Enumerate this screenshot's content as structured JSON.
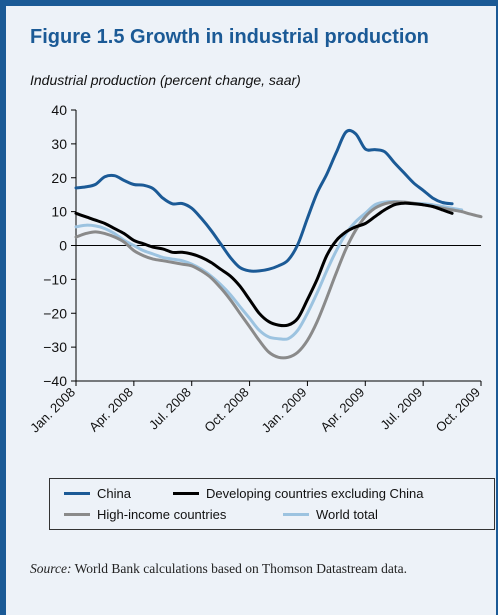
{
  "figure": {
    "title": "Figure 1.5  Growth in industrial production",
    "source_label": "Source:",
    "source_text": "World Bank calculations based on Thomson Datastream data."
  },
  "colors": {
    "title": "#1b5a96",
    "panel_bg": "#edf2f8",
    "border": "#1b5a96"
  },
  "chart_data": {
    "type": "line",
    "ylabel": "Industrial production (percent change, saar)",
    "ylim": [
      -40,
      40
    ],
    "yticks": [
      -40,
      -30,
      -20,
      -10,
      0,
      10,
      20,
      30,
      40
    ],
    "ytick_labels": [
      "−40",
      "−30",
      "−20",
      "−10",
      "0",
      "10",
      "20",
      "30",
      "40"
    ],
    "x_tick_labels": [
      "Jan. 2008",
      "Apr. 2008",
      "Jul. 2008",
      "Oct. 2008",
      "Jan. 2009",
      "Apr. 2009",
      "Jul. 2009",
      "Oct. 2009"
    ],
    "x_months_per_tick": 3,
    "x_range_months": [
      0,
      21
    ],
    "legend_position": "bottom",
    "series": [
      {
        "name": "China",
        "color": "#1b5a96",
        "x": [
          0,
          0.5,
          1,
          1.5,
          2,
          2.5,
          3,
          3.5,
          4,
          4.5,
          5,
          5.5,
          6,
          6.5,
          7,
          7.5,
          8,
          8.5,
          9,
          9.5,
          10,
          10.5,
          11,
          11.5,
          12,
          12.5,
          13,
          13.5,
          14,
          14.5,
          15,
          15.5,
          16,
          16.5,
          17,
          17.5,
          18,
          18.5,
          19,
          19.5
        ],
        "values": [
          17,
          17.3,
          18,
          20.3,
          20.6,
          19.2,
          18,
          17.8,
          16.8,
          14,
          12.3,
          12.4,
          11,
          8,
          4.5,
          0.5,
          -3.5,
          -6.5,
          -7.5,
          -7.5,
          -7,
          -6,
          -4.3,
          0.3,
          8,
          15.5,
          21,
          27.5,
          33.5,
          33,
          28.5,
          28.3,
          27.7,
          24.5,
          21.5,
          18.5,
          16.3,
          14,
          12.7,
          12.3
        ]
      },
      {
        "name": "Developing countries excluding China",
        "color": "#000000",
        "x": [
          0,
          0.5,
          1,
          1.5,
          2,
          2.5,
          3,
          3.5,
          4,
          4.5,
          5,
          5.5,
          6,
          6.5,
          7,
          7.5,
          8,
          8.5,
          9,
          9.5,
          10,
          10.5,
          11,
          11.5,
          12,
          12.5,
          13,
          13.5,
          14,
          14.5,
          15,
          15.5,
          16,
          16.5,
          17,
          17.5,
          18,
          18.5,
          19,
          19.5
        ],
        "values": [
          9.5,
          8.5,
          7.5,
          6.5,
          5,
          3.5,
          1.5,
          0.5,
          -0.5,
          -1,
          -2,
          -2,
          -2.5,
          -3.5,
          -5,
          -7,
          -9,
          -12,
          -16,
          -20,
          -22.5,
          -23.5,
          -23.5,
          -21.5,
          -16,
          -10,
          -3,
          1.5,
          4,
          5.5,
          6.5,
          8.5,
          10.5,
          12,
          12.5,
          12.3,
          12,
          11.5,
          10.5,
          9.5
        ]
      },
      {
        "name": "High-income countries",
        "color": "#8a8a8a",
        "x": [
          0,
          0.5,
          1,
          1.5,
          2,
          2.5,
          3,
          3.5,
          4,
          4.5,
          5,
          5.5,
          6,
          6.5,
          7,
          7.5,
          8,
          8.5,
          9,
          9.5,
          10,
          10.5,
          11,
          11.5,
          12,
          12.5,
          13,
          13.5,
          14,
          14.5,
          15,
          15.5,
          16,
          16.5,
          17,
          17.5,
          18,
          18.5,
          19,
          19.5,
          20,
          20.5,
          21
        ],
        "values": [
          2.5,
          3.5,
          4,
          3.5,
          2.5,
          1,
          -1.5,
          -3,
          -4,
          -4.5,
          -5,
          -5.5,
          -6,
          -7.5,
          -9.5,
          -12.5,
          -16,
          -20,
          -24,
          -28,
          -31.5,
          -33,
          -33,
          -31.5,
          -28,
          -22.5,
          -15.5,
          -8,
          -1,
          4.5,
          8.5,
          11,
          12.3,
          12.8,
          12.8,
          12.5,
          12,
          11.5,
          11,
          10.5,
          10,
          9.2,
          8.5
        ]
      },
      {
        "name": "World total",
        "color": "#9cc3e0",
        "x": [
          0,
          0.5,
          1,
          1.5,
          2,
          2.5,
          3,
          3.5,
          4,
          4.5,
          5,
          5.5,
          6,
          6.5,
          7,
          7.5,
          8,
          8.5,
          9,
          9.5,
          10,
          10.5,
          11,
          11.5,
          12,
          12.5,
          13,
          13.5,
          14,
          14.5,
          15,
          15.5,
          16,
          16.5,
          17,
          17.5,
          18,
          18.5,
          19,
          19.5,
          20
        ],
        "values": [
          5.5,
          6,
          5.8,
          5,
          3.5,
          1.5,
          0,
          -1.5,
          -2.5,
          -3.5,
          -4,
          -4.5,
          -5.5,
          -7,
          -9,
          -11.5,
          -14.5,
          -18,
          -21.5,
          -25,
          -27,
          -27.5,
          -27.5,
          -25,
          -20,
          -14,
          -7.5,
          -1.5,
          3.5,
          7,
          9.5,
          12,
          12.8,
          13,
          12.8,
          12.5,
          12.3,
          12,
          11.5,
          11,
          10.5
        ]
      }
    ]
  }
}
